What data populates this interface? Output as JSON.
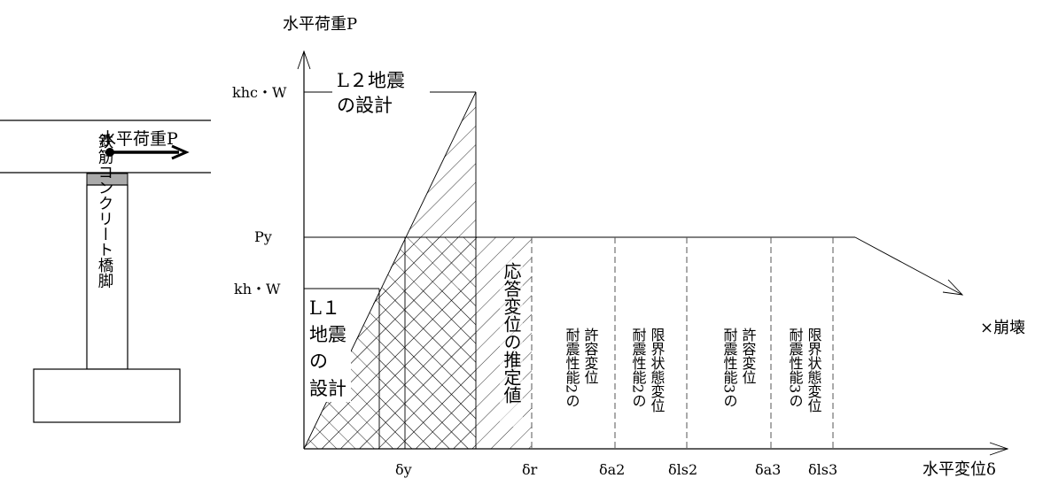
{
  "pier": {
    "load_label": "水平荷重P",
    "column_label": "鉄筋コンクリート橋脚"
  },
  "axes": {
    "y_label": "水平荷重P",
    "x_label": "水平変位δ",
    "y_ticks": [
      "khc・W",
      "Py",
      "kh・W"
    ],
    "x_ticks": [
      "δy",
      "δr",
      "δa2",
      "δls2",
      "δa3",
      "δls3"
    ]
  },
  "regions": {
    "l2_title": [
      "L２地震",
      "の設計"
    ],
    "l1_title": [
      "L１",
      "地震",
      "の",
      "設計"
    ],
    "response": "応答変位の推定値",
    "allow2": [
      "耐震性能2の",
      "許容変位"
    ],
    "limit2": [
      "耐震性能2の",
      "限界状態変位"
    ],
    "allow3": [
      "耐震性能3の",
      "許容変位"
    ],
    "limit3": [
      "耐震性能3の",
      "限界状態変位"
    ]
  },
  "collapse": "×崩壊"
}
